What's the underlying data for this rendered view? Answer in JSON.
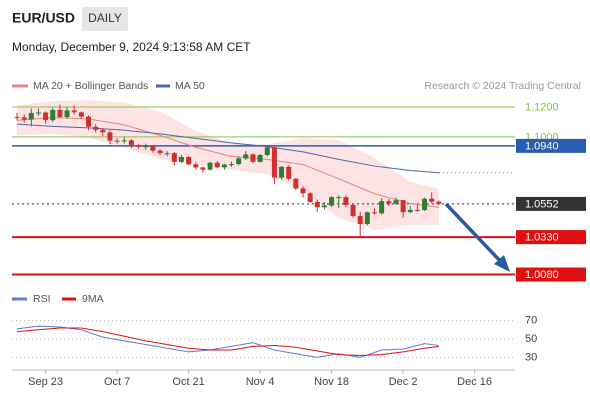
{
  "header": {
    "symbol": "EUR/USD",
    "timeframe": "DAILY",
    "timestamp": "Monday, December 9, 2024 9:13:58 AM CET",
    "source": "Research © 2024 Trading Central"
  },
  "chart_data": [
    {
      "type": "candlestick",
      "up_color": "#2e7d32",
      "down_color": "#d32f2f",
      "open": [
        1.1134,
        1.113,
        1.1116,
        1.116,
        1.1163,
        1.1112,
        1.118,
        1.1133,
        1.1177,
        1.1164,
        1.1135,
        1.1068,
        1.1047,
        1.103,
        1.0975,
        1.0974,
        1.0977,
        1.094,
        1.0937,
        1.0938,
        1.0908,
        1.0891,
        1.0891,
        1.0833,
        1.0866,
        1.0817,
        1.0796,
        1.0781,
        1.0827,
        1.0797,
        1.0815,
        1.0818,
        1.0856,
        1.0883,
        1.0833,
        1.0879,
        1.093,
        1.0728,
        1.08,
        1.072,
        1.0655,
        1.0623,
        1.0565,
        1.053,
        1.0541,
        1.0597,
        1.0597,
        1.0545,
        1.0471,
        1.0418,
        1.0496,
        1.0489,
        1.057,
        1.0554,
        1.0577,
        1.0497,
        1.0512,
        1.0511,
        1.0587,
        1.0567
      ],
      "high": [
        1.116,
        1.115,
        1.119,
        1.119,
        1.117,
        1.1195,
        1.1215,
        1.12,
        1.121,
        1.117,
        1.1145,
        1.1085,
        1.106,
        1.1045,
        1.099,
        1.1,
        1.0985,
        1.0955,
        1.0955,
        1.0945,
        1.092,
        1.0905,
        1.09,
        1.088,
        1.087,
        1.083,
        1.08,
        1.0835,
        1.084,
        1.082,
        1.0835,
        1.087,
        1.0905,
        1.089,
        1.0885,
        1.0937,
        1.0935,
        1.0805,
        1.081,
        1.0725,
        1.067,
        1.063,
        1.058,
        1.0565,
        1.0605,
        1.061,
        1.061,
        1.055,
        1.05,
        1.05,
        1.052,
        1.059,
        1.0585,
        1.0595,
        1.058,
        1.054,
        1.0545,
        1.0595,
        1.063,
        1.0575
      ],
      "low": [
        1.111,
        1.1095,
        1.107,
        1.114,
        1.109,
        1.11,
        1.1125,
        1.112,
        1.115,
        1.112,
        1.1045,
        1.103,
        1.1005,
        1.095,
        1.0955,
        1.0955,
        1.0925,
        1.092,
        1.0915,
        1.0895,
        1.0875,
        1.087,
        1.081,
        1.0825,
        1.081,
        1.078,
        1.076,
        1.0775,
        1.079,
        1.078,
        1.08,
        1.081,
        1.0845,
        1.0825,
        1.083,
        1.087,
        1.0683,
        1.0715,
        1.071,
        1.0645,
        1.0595,
        1.056,
        1.05,
        1.0515,
        1.053,
        1.0525,
        1.053,
        1.046,
        1.0332,
        1.041,
        1.048,
        1.048,
        1.054,
        1.0545,
        1.046,
        1.049,
        1.05,
        1.0505,
        1.0555,
        1.0545
      ],
      "close": [
        1.113,
        1.1116,
        1.116,
        1.1163,
        1.1112,
        1.118,
        1.1133,
        1.1177,
        1.1164,
        1.1135,
        1.1068,
        1.1047,
        1.103,
        1.0975,
        1.0974,
        1.0977,
        1.094,
        1.0937,
        1.0938,
        1.0908,
        1.0891,
        1.0891,
        1.0833,
        1.0866,
        1.0817,
        1.0796,
        1.0781,
        1.0827,
        1.0797,
        1.0815,
        1.0818,
        1.0856,
        1.0883,
        1.0833,
        1.0879,
        1.093,
        1.0728,
        1.08,
        1.072,
        1.0655,
        1.0623,
        1.0565,
        1.053,
        1.0541,
        1.0597,
        1.0597,
        1.0545,
        1.0471,
        1.0418,
        1.0496,
        1.0489,
        1.057,
        1.0554,
        1.0577,
        1.0497,
        1.0512,
        1.0511,
        1.0587,
        1.0567,
        1.0552
      ],
      "series": [
        {
          "name": "MA 20 + Bollinger Bands",
          "color": "#f08080",
          "band_color": "#fde3e3",
          "x": [
            0,
            5,
            10,
            15,
            20,
            25,
            30,
            35,
            40,
            45,
            50,
            55,
            59
          ],
          "values": [
            1.111,
            1.113,
            1.112,
            1.108,
            1.101,
            1.093,
            1.087,
            1.085,
            1.0815,
            1.072,
            1.062,
            1.0555,
            1.053
          ],
          "upper": [
            1.121,
            1.124,
            1.1245,
            1.123,
            1.117,
            1.104,
            1.096,
            1.095,
            1.099,
            1.098,
            1.086,
            1.07,
            1.065
          ],
          "lower": [
            1.101,
            1.102,
            1.0995,
            1.093,
            1.085,
            1.082,
            1.078,
            1.075,
            1.064,
            1.046,
            1.038,
            1.041,
            1.041
          ]
        },
        {
          "name": "MA 50",
          "color": "#4a6aa5",
          "x": [
            0,
            5,
            10,
            15,
            20,
            25,
            30,
            35,
            40,
            45,
            50,
            55,
            59
          ],
          "values": [
            1.1085,
            1.107,
            1.106,
            1.1045,
            1.102,
            1.099,
            1.096,
            1.0935,
            1.09,
            1.085,
            1.0805,
            1.0775,
            1.076
          ]
        }
      ],
      "levels": [
        {
          "value": 1.12,
          "label": "1.1200",
          "color": "#8bc34a",
          "boxed": false,
          "line_width": 1,
          "dotted": false
        },
        {
          "value": 1.1,
          "label": "1.1000",
          "color": "#8bc34a",
          "boxed": false,
          "line_width": 1,
          "dotted": false
        },
        {
          "value": 1.094,
          "label": "1.0940",
          "color": "#2a5db0",
          "boxed": true,
          "line_width": 1.5,
          "dotted": false
        },
        {
          "value": 1.0552,
          "label": "1.0552",
          "color": "#333333",
          "boxed": true,
          "line_width": 1,
          "dotted": true
        },
        {
          "value": 1.033,
          "label": "1.0330",
          "color": "#e01010",
          "boxed": true,
          "line_width": 2,
          "dotted": false
        },
        {
          "value": 1.008,
          "label": "1.0080",
          "color": "#e01010",
          "boxed": true,
          "line_width": 2,
          "dotted": false
        }
      ],
      "xlim": [
        -0.7,
        69.65
      ],
      "ylim": [
        1.001,
        1.128
      ],
      "xticks": [
        {
          "value": 4,
          "label": "Sep 23"
        },
        {
          "value": 14,
          "label": "Oct 7"
        },
        {
          "value": 24,
          "label": "Oct 21"
        },
        {
          "value": 34,
          "label": "Nov 4"
        },
        {
          "value": 44,
          "label": "Nov 18"
        },
        {
          "value": 54,
          "label": "Dec 2"
        },
        {
          "value": 64,
          "label": "Dec 16"
        }
      ]
    },
    {
      "type": "line",
      "series": [
        {
          "name": "RSI",
          "color": "#5b7fd6",
          "x": [
            0,
            3,
            6,
            9,
            12,
            15,
            18,
            21,
            24,
            27,
            30,
            33,
            36,
            39,
            42,
            45,
            48,
            51,
            54,
            57,
            59
          ],
          "values": [
            61,
            64,
            63,
            60,
            52,
            48,
            44,
            40,
            36,
            38,
            42,
            46,
            38,
            34,
            30,
            34,
            30,
            38,
            39,
            45,
            43
          ]
        },
        {
          "name": "9MA",
          "color": "#e01010",
          "x": [
            0,
            3,
            6,
            9,
            12,
            15,
            18,
            21,
            24,
            27,
            30,
            33,
            36,
            39,
            42,
            45,
            48,
            51,
            54,
            57,
            59
          ],
          "values": [
            58,
            60,
            62,
            62,
            58,
            53,
            48,
            44,
            40,
            38,
            38,
            42,
            43,
            41,
            37,
            33,
            32,
            33,
            36,
            40,
            42
          ]
        }
      ],
      "xlim": [
        -0.7,
        69.65
      ],
      "ylim": [
        25,
        75
      ],
      "yticks": [
        30,
        50,
        70
      ],
      "grid": true
    }
  ]
}
